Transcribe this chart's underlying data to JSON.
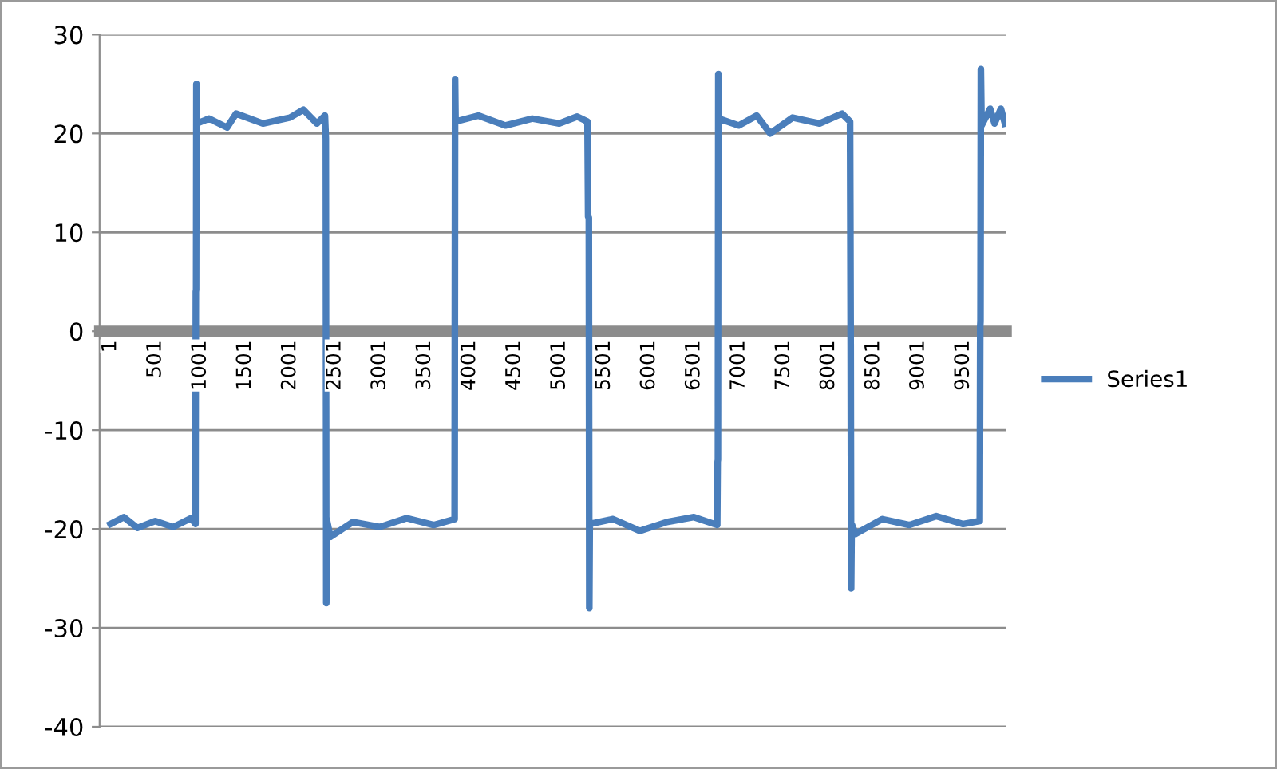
{
  "chart_data": {
    "type": "line",
    "x": [
      1,
      150,
      300,
      500,
      700,
      900,
      948,
      952,
      955,
      958,
      962,
      1100,
      1300,
      1400,
      1700,
      2000,
      2150,
      2300,
      2390,
      2400,
      2405,
      2410,
      2450,
      2700,
      3000,
      3300,
      3600,
      3835,
      3840,
      3845,
      4100,
      4400,
      4700,
      5000,
      5200,
      5315,
      5322,
      5330,
      5335,
      5340,
      5600,
      5900,
      6200,
      6500,
      6760,
      6765,
      6768,
      6772,
      6778,
      7000,
      7200,
      7350,
      7600,
      7900,
      8150,
      8240,
      8247,
      8252,
      8258,
      8300,
      8600,
      8900,
      9200,
      9500,
      9685,
      9690,
      9693,
      9697,
      9705,
      9800,
      9850,
      9920,
      9965
    ],
    "series": [
      {
        "name": "Series1",
        "color": "#4a7ebb",
        "values": [
          -19.5,
          -18.8,
          -19.9,
          -19.2,
          -19.8,
          -18.9,
          -19.5,
          4.0,
          4.2,
          25.0,
          21.0,
          21.5,
          20.6,
          22.0,
          21.0,
          21.6,
          22.4,
          21.0,
          21.8,
          19.5,
          -27.5,
          -19.0,
          -20.8,
          -19.3,
          -19.8,
          -18.9,
          -19.6,
          -19.0,
          25.5,
          21.2,
          21.8,
          20.8,
          21.5,
          21.0,
          21.7,
          21.2,
          11.6,
          11.5,
          -28.0,
          -19.5,
          -19.0,
          -20.2,
          -19.3,
          -18.8,
          -19.6,
          -13.2,
          -13.0,
          26.0,
          21.5,
          20.8,
          21.8,
          20.0,
          21.6,
          21.0,
          22.0,
          21.2,
          -1.5,
          -26.0,
          -19.5,
          -20.5,
          -19.0,
          -19.6,
          -18.7,
          -19.5,
          -19.2,
          0.5,
          1.0,
          26.5,
          20.8,
          22.5,
          21.0,
          22.5,
          21.0
        ]
      }
    ],
    "xlim": [
      -120,
      9980
    ],
    "xticks": [
      1,
      501,
      1001,
      1501,
      2001,
      2501,
      3001,
      3501,
      4001,
      4501,
      5001,
      5501,
      6001,
      6501,
      7001,
      7501,
      8001,
      8501,
      9001,
      9501
    ],
    "ylim": [
      -40,
      30
    ],
    "yticks": [
      -40,
      -30,
      -20,
      -10,
      0,
      10,
      20,
      30
    ],
    "grid": "y",
    "legend": "right"
  }
}
